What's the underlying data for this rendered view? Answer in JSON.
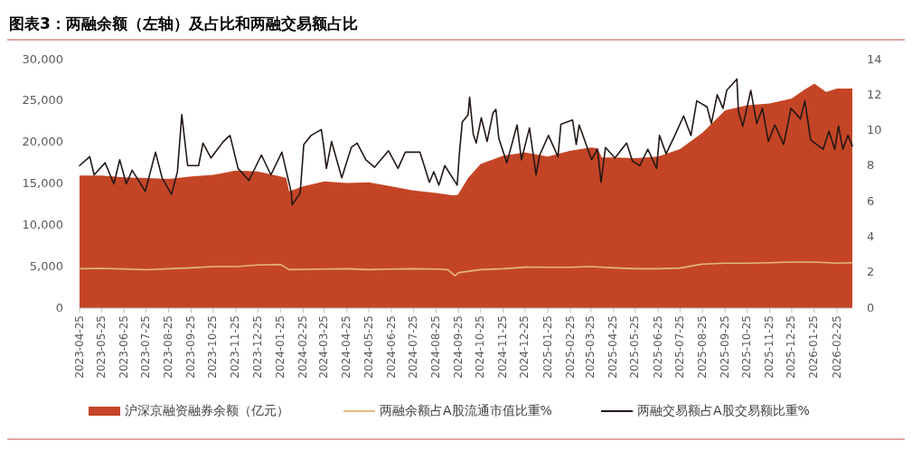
{
  "chart_data": {
    "type": "line",
    "title": "图表3：两融余额（左轴）及占比和两融交易额占比",
    "xlim": [
      "2023-04-25",
      "2026-03-18"
    ],
    "xticks": [
      "2023-04-25",
      "2023-05-25",
      "2023-06-25",
      "2023-07-25",
      "2023-08-25",
      "2023-09-25",
      "2023-10-25",
      "2023-11-25",
      "2023-12-25",
      "2024-01-25",
      "2024-02-25",
      "2024-03-25",
      "2024-04-25",
      "2024-05-25",
      "2024-06-25",
      "2024-07-25",
      "2024-08-25",
      "2024-09-25",
      "2024-10-25",
      "2024-11-25",
      "2024-12-25",
      "2025-01-25",
      "2025-02-25",
      "2025-03-25",
      "2025-04-25",
      "2025-05-25",
      "2025-06-25",
      "2025-07-25",
      "2025-08-25",
      "2025-09-25",
      "2025-10-25",
      "2025-11-25",
      "2025-12-25",
      "2026-01-25",
      "2026-02-25"
    ],
    "ylim": [
      0,
      30000
    ],
    "yticks": [
      0,
      {
        "value": 5000,
        "label": "5,000"
      },
      {
        "value": 10000,
        "label": "10,000"
      },
      {
        "value": 15000,
        "label": "15,000"
      },
      {
        "value": 20000,
        "label": "20,000"
      },
      {
        "value": 25000,
        "label": "25,000"
      },
      {
        "value": 30000,
        "label": "30,000"
      }
    ],
    "y2lim": [
      0,
      14
    ],
    "y2ticks": [
      0,
      2,
      4,
      6,
      8,
      10,
      12,
      14
    ],
    "legend": "bottom",
    "series": [
      {
        "name": "沪深京融资融券余额（亿元）",
        "type": "area",
        "color": "#c44526",
        "x": [
          "2023-04-25",
          "2023-05-25",
          "2023-06-25",
          "2023-07-25",
          "2023-08-25",
          "2023-09-25",
          "2023-10-25",
          "2023-11-25",
          "2023-12-25",
          "2024-01-25",
          "2024-02-02",
          "2024-02-06",
          "2024-02-25",
          "2024-03-25",
          "2024-04-25",
          "2024-05-25",
          "2024-06-25",
          "2024-07-25",
          "2024-08-25",
          "2024-09-18",
          "2024-09-24",
          "2024-10-08",
          "2024-10-25",
          "2024-11-25",
          "2024-12-25",
          "2025-01-25",
          "2025-02-25",
          "2025-03-25",
          "2025-04-03",
          "2025-04-09",
          "2025-04-25",
          "2025-05-25",
          "2025-06-25",
          "2025-07-25",
          "2025-08-25",
          "2025-09-25",
          "2025-10-25",
          "2025-11-25",
          "2025-12-25",
          "2026-01-10",
          "2026-01-25",
          "2026-02-10",
          "2026-02-25",
          "2026-03-18"
        ],
        "values": [
          16000,
          16000,
          15800,
          15700,
          15600,
          15900,
          16100,
          16600,
          16500,
          15900,
          15700,
          14100,
          14700,
          15300,
          15100,
          15200,
          14700,
          14200,
          13900,
          13600,
          13700,
          15700,
          17400,
          18400,
          18800,
          18300,
          19000,
          19400,
          19300,
          18200,
          18200,
          18100,
          18300,
          19200,
          21200,
          23900,
          24500,
          24700,
          25300,
          26300,
          27100,
          26100,
          26500,
          26500
        ]
      },
      {
        "name": "两融余额占A股流通市值比重%",
        "axis": "y2",
        "color": "#e0b97a",
        "x": [
          "2023-04-25",
          "2023-05-25",
          "2023-06-25",
          "2023-07-25",
          "2023-08-25",
          "2023-09-25",
          "2023-10-25",
          "2023-11-25",
          "2023-12-25",
          "2024-01-25",
          "2024-02-06",
          "2024-03-25",
          "2024-04-25",
          "2024-05-25",
          "2024-06-25",
          "2024-07-25",
          "2024-08-25",
          "2024-09-10",
          "2024-09-20",
          "2024-09-25",
          "2024-10-25",
          "2024-11-25",
          "2024-12-25",
          "2025-01-25",
          "2025-02-25",
          "2025-03-25",
          "2025-04-25",
          "2025-05-25",
          "2025-06-25",
          "2025-07-25",
          "2025-08-25",
          "2025-09-25",
          "2025-10-25",
          "2025-11-25",
          "2025-12-25",
          "2026-01-25",
          "2026-02-25",
          "2026-03-18"
        ],
        "values": [
          2.22,
          2.24,
          2.21,
          2.16,
          2.22,
          2.27,
          2.34,
          2.34,
          2.43,
          2.46,
          2.17,
          2.2,
          2.22,
          2.17,
          2.2,
          2.22,
          2.2,
          2.17,
          1.83,
          2.0,
          2.17,
          2.22,
          2.31,
          2.3,
          2.3,
          2.34,
          2.27,
          2.22,
          2.22,
          2.26,
          2.48,
          2.53,
          2.53,
          2.56,
          2.6,
          2.6,
          2.53,
          2.56
        ]
      },
      {
        "name": "两融交易额占A股交易额比重%",
        "axis": "y2",
        "color": "#231815",
        "x": [
          "2023-04-25",
          "2023-05-09",
          "2023-05-15",
          "2023-05-30",
          "2023-06-11",
          "2023-06-19",
          "2023-06-28",
          "2023-07-06",
          "2023-07-24",
          "2023-08-07",
          "2023-08-16",
          "2023-08-29",
          "2023-09-06",
          "2023-09-12",
          "2023-09-20",
          "2023-10-05",
          "2023-10-11",
          "2023-10-22",
          "2023-11-08",
          "2023-11-17",
          "2023-11-28",
          "2023-12-13",
          "2023-12-30",
          "2024-01-12",
          "2024-01-27",
          "2024-02-09",
          "2024-02-10",
          "2024-02-21",
          "2024-02-26",
          "2024-03-07",
          "2024-03-21",
          "2024-03-24",
          "2024-03-28",
          "2024-04-04",
          "2024-04-18",
          "2024-05-01",
          "2024-05-09",
          "2024-05-21",
          "2024-06-02",
          "2024-06-21",
          "2024-07-04",
          "2024-07-14",
          "2024-08-03",
          "2024-08-16",
          "2024-08-22",
          "2024-08-29",
          "2024-09-06",
          "2024-09-23",
          "2024-09-26",
          "2024-09-30",
          "2024-10-08",
          "2024-10-10",
          "2024-10-15",
          "2024-10-19",
          "2024-10-26",
          "2024-11-03",
          "2024-11-11",
          "2024-11-15",
          "2024-11-19",
          "2024-11-30",
          "2024-12-14",
          "2024-12-20",
          "2024-12-31",
          "2025-01-09",
          "2025-01-14",
          "2025-01-26",
          "2025-02-08",
          "2025-02-12",
          "2025-02-28",
          "2025-03-05",
          "2025-03-09",
          "2025-03-26",
          "2025-04-03",
          "2025-04-08",
          "2025-04-14",
          "2025-04-27",
          "2025-05-13",
          "2025-05-21",
          "2025-05-31",
          "2025-06-11",
          "2025-06-23",
          "2025-06-27",
          "2025-07-06",
          "2025-07-18",
          "2025-07-30",
          "2025-08-09",
          "2025-08-17",
          "2025-08-31",
          "2025-09-06",
          "2025-09-14",
          "2025-09-22",
          "2025-09-27",
          "2025-10-11",
          "2025-10-13",
          "2025-10-19",
          "2025-10-30",
          "2025-11-07",
          "2025-11-15",
          "2025-11-23",
          "2025-12-02",
          "2025-12-14",
          "2025-12-24",
          "2026-01-06",
          "2026-01-12",
          "2026-01-20",
          "2026-02-06",
          "2026-02-14",
          "2026-02-22",
          "2026-02-27",
          "2026-03-05",
          "2026-03-12",
          "2026-03-18"
        ],
        "values": [
          8.03,
          8.53,
          7.51,
          8.19,
          7.0,
          8.36,
          7.0,
          7.77,
          6.58,
          8.79,
          7.34,
          6.41,
          7.68,
          10.9,
          8.03,
          8.03,
          9.3,
          8.46,
          9.39,
          9.73,
          7.87,
          7.19,
          8.63,
          7.51,
          8.79,
          6.5,
          5.82,
          6.47,
          9.22,
          9.73,
          10.06,
          9.22,
          7.87,
          9.39,
          7.34,
          9.05,
          9.3,
          8.36,
          7.94,
          8.87,
          7.87,
          8.79,
          8.79,
          7.09,
          7.69,
          6.93,
          8.03,
          6.93,
          8.7,
          10.49,
          10.9,
          11.89,
          9.8,
          9.3,
          10.73,
          9.39,
          11.0,
          11.2,
          9.56,
          8.19,
          10.32,
          8.36,
          10.15,
          7.51,
          8.63,
          9.73,
          8.53,
          10.36,
          10.6,
          9.22,
          10.32,
          8.36,
          8.95,
          7.09,
          9.05,
          8.46,
          9.3,
          8.28,
          8.03,
          8.95,
          7.87,
          9.73,
          8.7,
          9.73,
          10.83,
          9.73,
          11.68,
          11.34,
          10.4,
          12.02,
          11.26,
          12.27,
          12.91,
          11.09,
          10.24,
          12.27,
          10.4,
          11.26,
          9.39,
          10.32,
          9.22,
          11.26,
          10.66,
          11.68,
          9.48,
          8.95,
          9.97,
          8.95,
          10.26,
          8.95,
          9.73,
          9.14
        ]
      }
    ]
  }
}
